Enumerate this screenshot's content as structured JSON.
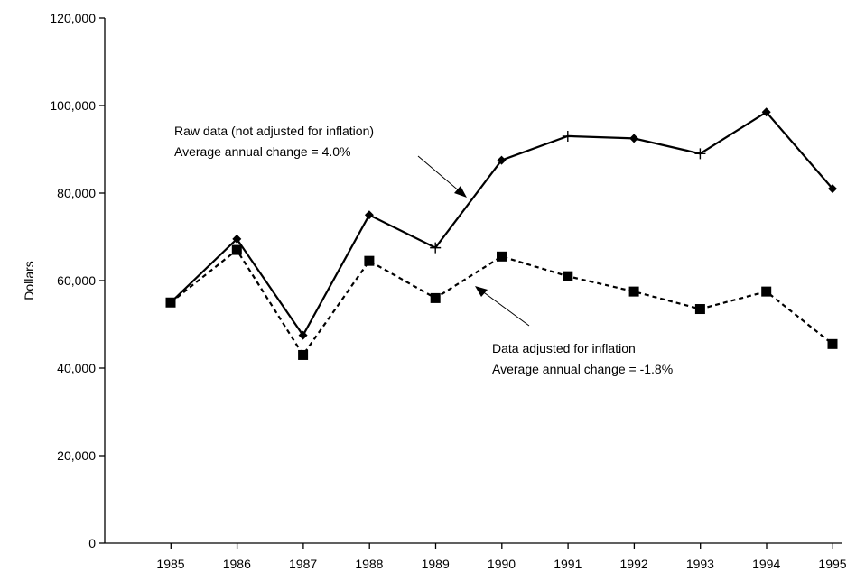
{
  "chart_data": {
    "type": "line",
    "title": "",
    "xlabel": "",
    "ylabel": "Dollars",
    "categories": [
      "1985",
      "1986",
      "1987",
      "1988",
      "1989",
      "1990",
      "1991",
      "1992",
      "1993",
      "1994",
      "1995"
    ],
    "ylim": [
      0,
      120000
    ],
    "yticks": [
      0,
      20000,
      40000,
      60000,
      80000,
      100000,
      120000
    ],
    "ytick_labels": [
      "0",
      "20,000",
      "40,000",
      "60,000",
      "80,000",
      "100,000",
      "120,000"
    ],
    "grid": false,
    "legend": "none",
    "series": [
      {
        "values": [
          55000,
          69500,
          47500,
          75000,
          67500,
          87500,
          93000,
          92500,
          89000,
          98500,
          81000
        ],
        "markers": [
          "diamond",
          "diamond",
          "diamond",
          "diamond",
          "plus",
          "diamond",
          "plus",
          "diamond",
          "plus",
          "diamond",
          "diamond"
        ],
        "line_style": "solid",
        "color": "#000000"
      },
      {
        "values": [
          55000,
          67000,
          43000,
          64500,
          56000,
          65500,
          61000,
          57500,
          53500,
          57500,
          45500
        ],
        "markers": [
          "square",
          "square",
          "square",
          "square",
          "square",
          "square",
          "square",
          "square",
          "square",
          "square",
          "square"
        ],
        "line_style": "dashed",
        "color": "#000000"
      }
    ],
    "annotations": [
      {
        "lines": [
          "Raw data (not adjusted for inflation)",
          "Average annual change = 4.0%"
        ],
        "series_index": 0
      },
      {
        "lines": [
          "Data adjusted for inflation",
          "Average annual change = -1.8%"
        ],
        "series_index": 1
      }
    ]
  }
}
